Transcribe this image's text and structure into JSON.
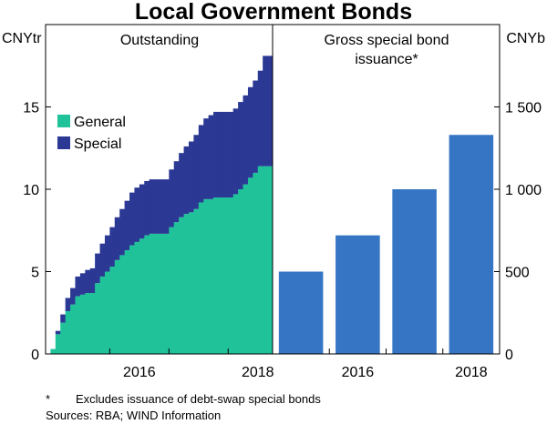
{
  "title": "Local Government Bonds",
  "footnote_marker": "*",
  "footnote": "Excludes issuance of debt-swap special bonds",
  "sources": "Sources: RBA; WIND Information",
  "colors": {
    "general": "#20c29a",
    "special": "#2b3894",
    "issuance": "#3575c4"
  },
  "chart_data": [
    {
      "type": "area",
      "stacked": true,
      "panel_title": "Outstanding",
      "ylabel": "CNYtr",
      "ylim": [
        0,
        20
      ],
      "yticks": [
        0,
        5,
        10,
        15
      ],
      "xticks": [
        "2016",
        "2018"
      ],
      "x_start": "2014-12",
      "x_end": "2018-10",
      "legend": [
        "General",
        "Special"
      ],
      "legend_position": "top-left",
      "x": [
        "2015-01",
        "2015-02",
        "2015-03",
        "2015-04",
        "2015-05",
        "2015-06",
        "2015-07",
        "2015-08",
        "2015-09",
        "2015-10",
        "2015-11",
        "2015-12",
        "2016-01",
        "2016-02",
        "2016-03",
        "2016-04",
        "2016-05",
        "2016-06",
        "2016-07",
        "2016-08",
        "2016-09",
        "2016-10",
        "2016-11",
        "2016-12",
        "2017-01",
        "2017-02",
        "2017-03",
        "2017-04",
        "2017-05",
        "2017-06",
        "2017-07",
        "2017-08",
        "2017-09",
        "2017-10",
        "2017-11",
        "2017-12",
        "2018-01",
        "2018-02",
        "2018-03",
        "2018-04",
        "2018-05",
        "2018-06",
        "2018-07",
        "2018-08",
        "2018-09"
      ],
      "series": [
        {
          "name": "General",
          "values": [
            0.3,
            1.2,
            1.9,
            2.6,
            3.0,
            3.5,
            3.6,
            3.7,
            3.7,
            4.3,
            4.7,
            5.0,
            5.3,
            5.7,
            6.0,
            6.3,
            6.6,
            6.8,
            7.0,
            7.2,
            7.3,
            7.3,
            7.3,
            7.3,
            7.7,
            8.0,
            8.3,
            8.5,
            8.6,
            8.8,
            9.2,
            9.4,
            9.4,
            9.5,
            9.5,
            9.5,
            9.5,
            9.7,
            10.0,
            10.3,
            10.7,
            11.0,
            11.4,
            11.4,
            11.4
          ]
        },
        {
          "name": "Special",
          "values": [
            0.0,
            0.2,
            0.5,
            0.8,
            1.0,
            1.2,
            1.3,
            1.4,
            1.5,
            1.8,
            2.0,
            2.2,
            2.4,
            2.6,
            2.8,
            3.0,
            3.2,
            3.3,
            3.3,
            3.3,
            3.3,
            3.3,
            3.3,
            3.3,
            3.5,
            3.7,
            3.9,
            4.1,
            4.3,
            4.5,
            4.7,
            4.9,
            5.1,
            5.2,
            5.2,
            5.2,
            5.2,
            5.2,
            5.3,
            5.4,
            5.5,
            5.6,
            5.8,
            6.7,
            6.7
          ]
        }
      ]
    },
    {
      "type": "bar",
      "panel_title": "Gross special bond issuance*",
      "ylabel": "CNYb",
      "ylim": [
        0,
        2000
      ],
      "yticks": [
        0,
        500,
        1000,
        1500
      ],
      "ytick_labels": [
        "0",
        "500",
        "1 000",
        "1 500"
      ],
      "categories": [
        "2015",
        "2016",
        "2017",
        "2018"
      ],
      "category_labels": [
        "",
        "2016",
        "",
        "2018"
      ],
      "values": [
        500,
        720,
        1000,
        1330
      ]
    }
  ]
}
